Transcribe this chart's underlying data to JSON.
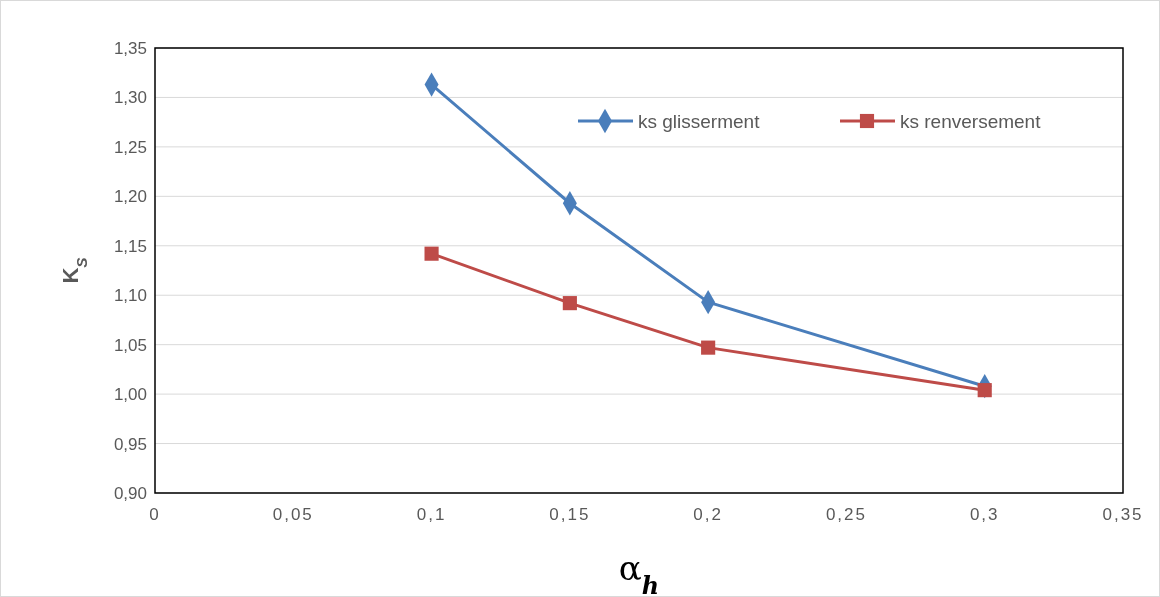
{
  "chart_data": {
    "type": "line",
    "xlabel": "α$_{h}$",
    "ylabel": "K$_{S}$",
    "xlim": [
      0,
      0.35
    ],
    "xticks": [
      {
        "value": 0,
        "label": "0"
      },
      {
        "value": 0.05,
        "label": "0,05"
      },
      {
        "value": 0.1,
        "label": "0,1"
      },
      {
        "value": 0.15,
        "label": "0,15"
      },
      {
        "value": 0.2,
        "label": "0,2"
      },
      {
        "value": 0.25,
        "label": "0,25"
      },
      {
        "value": 0.3,
        "label": "0,3"
      },
      {
        "value": 0.35,
        "label": "0,35"
      }
    ],
    "ylim": [
      0.9,
      1.35
    ],
    "yticks": [
      {
        "value": 0.9,
        "label": "0,90"
      },
      {
        "value": 0.95,
        "label": "0,95"
      },
      {
        "value": 1.0,
        "label": "1,00"
      },
      {
        "value": 1.05,
        "label": "1,05"
      },
      {
        "value": 1.1,
        "label": "1,10"
      },
      {
        "value": 1.15,
        "label": "1,15"
      },
      {
        "value": 1.2,
        "label": "1,20"
      },
      {
        "value": 1.25,
        "label": "1,25"
      },
      {
        "value": 1.3,
        "label": "1,30"
      },
      {
        "value": 1.35,
        "label": "1,35"
      }
    ],
    "grid": "y",
    "legend": "top right",
    "series": [
      {
        "name": "ks glisserment",
        "color": "#4a7ebb",
        "marker": "diamond",
        "x": [
          0.1,
          0.15,
          0.2,
          0.3
        ],
        "values": [
          1.313,
          1.193,
          1.093,
          1.008
        ]
      },
      {
        "name": "ks renversement",
        "color": "#be4b48",
        "marker": "square",
        "x": [
          0.1,
          0.15,
          0.2,
          0.3
        ],
        "values": [
          1.142,
          1.092,
          1.047,
          1.004
        ]
      }
    ]
  }
}
